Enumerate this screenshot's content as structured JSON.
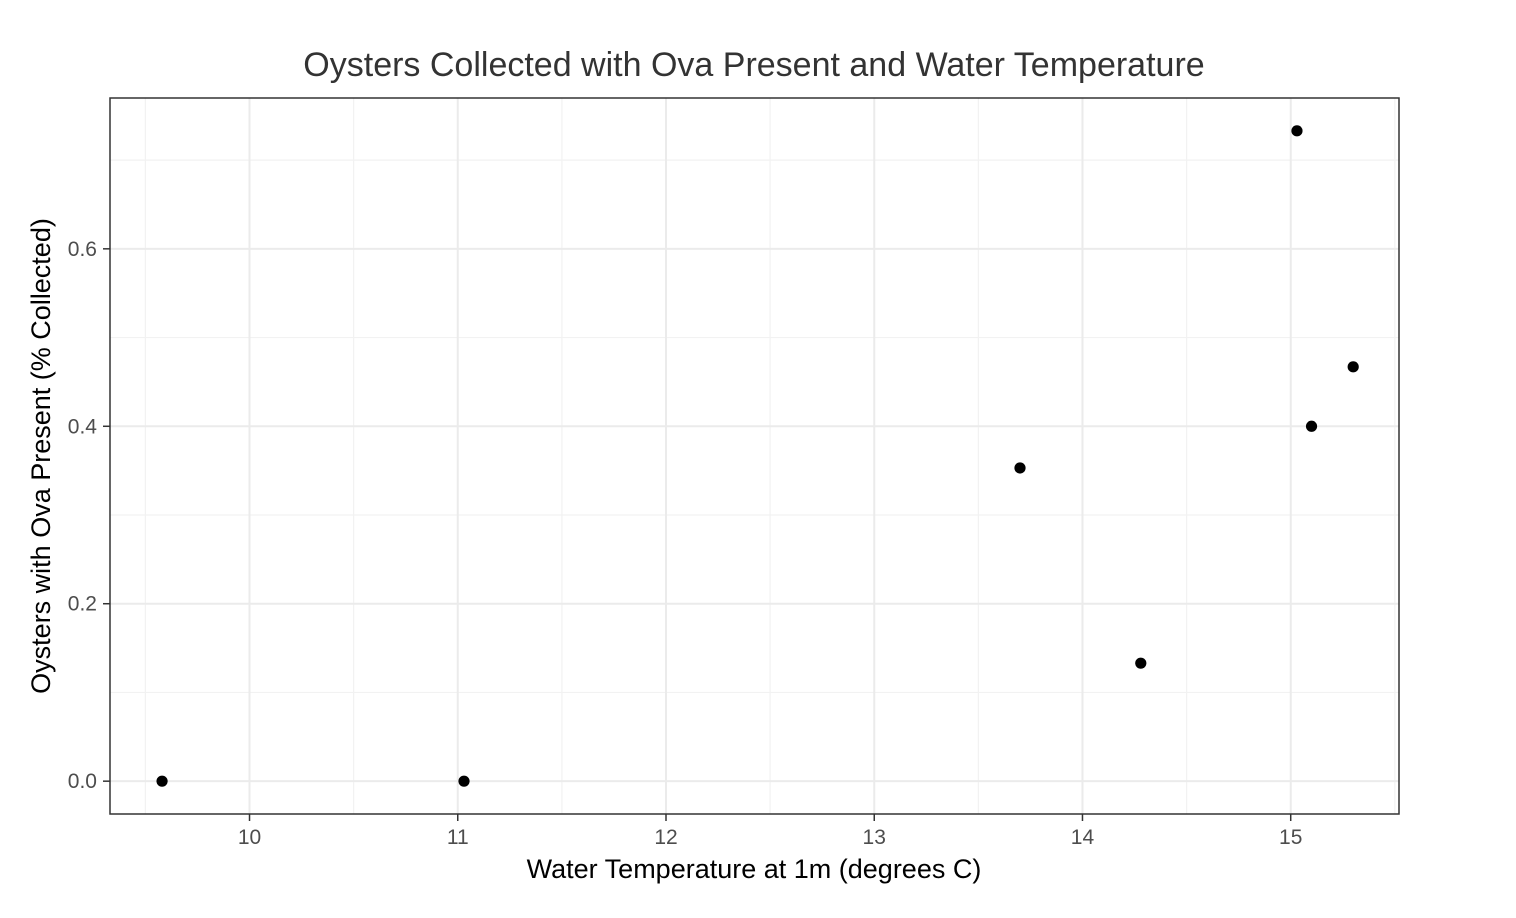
{
  "chart_data": {
    "type": "scatter",
    "title": "Oysters Collected with Ova Present and Water Temperature",
    "xlabel": "Water Temperature at 1m (degrees C)",
    "ylabel": "Oysters with Ova Present (% Collected)",
    "xlim": [
      9.33,
      15.52
    ],
    "ylim": [
      -0.037,
      0.77
    ],
    "x_ticks": [
      10,
      11,
      12,
      13,
      14,
      15
    ],
    "x_tick_labels": [
      "10",
      "11",
      "12",
      "13",
      "14",
      "15"
    ],
    "y_ticks": [
      0.0,
      0.2,
      0.4,
      0.6
    ],
    "y_tick_labels": [
      "0.0",
      "0.2",
      "0.4",
      "0.6"
    ],
    "x_minor_ticks": [
      9.5,
      10.5,
      11.5,
      12.5,
      13.5,
      14.5,
      15.5
    ],
    "y_minor_ticks": [
      0.1,
      0.3,
      0.5,
      0.7
    ],
    "grid": true,
    "legend": "none",
    "point_color": "#000000",
    "series": [
      {
        "points": [
          {
            "x": 9.58,
            "y": 0.0
          },
          {
            "x": 11.03,
            "y": 0.0
          },
          {
            "x": 13.7,
            "y": 0.353
          },
          {
            "x": 14.28,
            "y": 0.133
          },
          {
            "x": 15.03,
            "y": 0.733
          },
          {
            "x": 15.1,
            "y": 0.4
          },
          {
            "x": 15.3,
            "y": 0.467
          }
        ]
      }
    ]
  }
}
